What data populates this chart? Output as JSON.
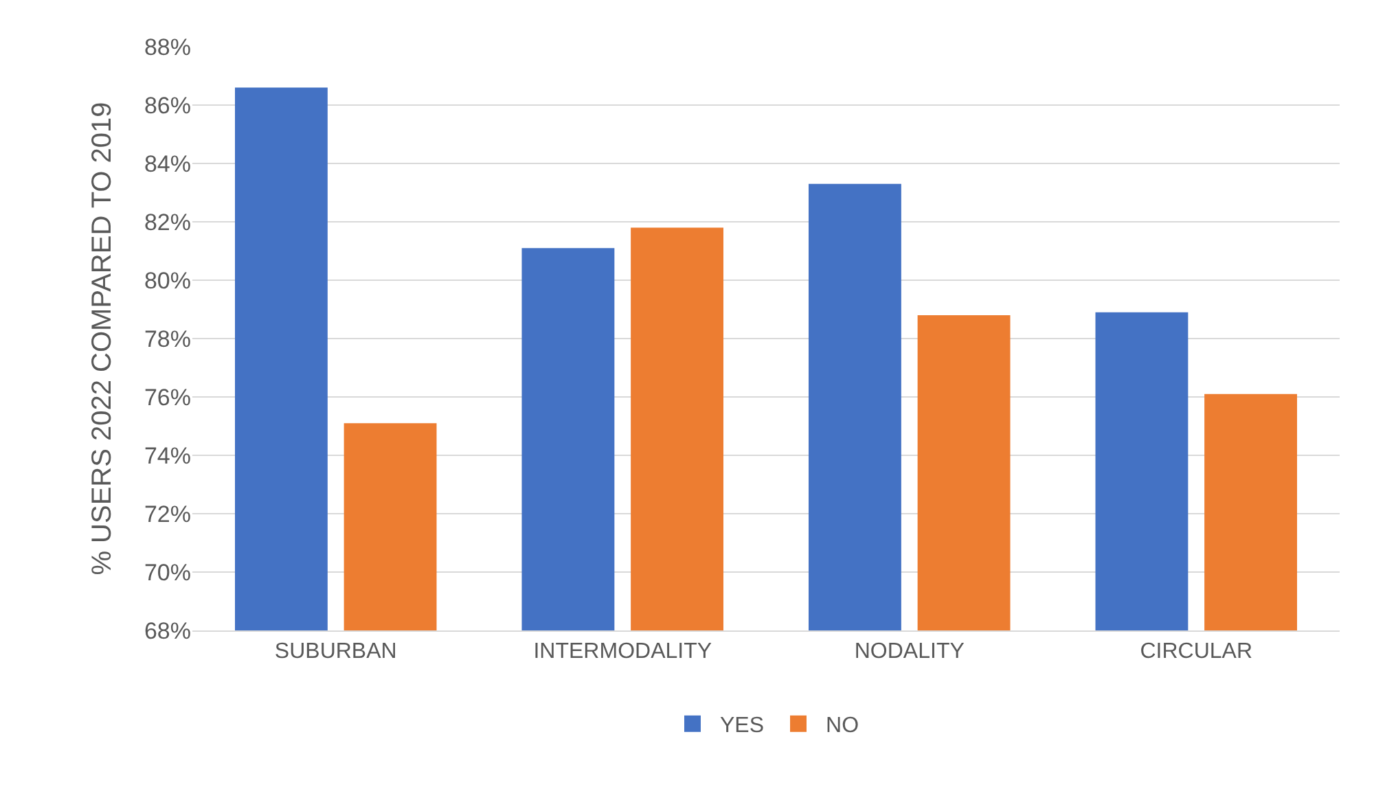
{
  "chart_data": {
    "type": "bar",
    "ylabel": "% USERS 2022 COMPARED TO 2019",
    "categories": [
      "SUBURBAN",
      "INTERMODALITY",
      "NODALITY",
      "CIRCULAR"
    ],
    "series": [
      {
        "name": "YES",
        "color": "#4472c4",
        "values": [
          86.6,
          81.1,
          83.3,
          78.9
        ]
      },
      {
        "name": "NO",
        "color": "#ed7d31",
        "values": [
          75.1,
          81.8,
          78.8,
          76.1
        ]
      }
    ],
    "ylim": [
      68,
      88
    ],
    "yticks": [
      {
        "value": 68,
        "label": "68%"
      },
      {
        "value": 70,
        "label": "70%"
      },
      {
        "value": 72,
        "label": "72%"
      },
      {
        "value": 74,
        "label": "74%"
      },
      {
        "value": 76,
        "label": "76%"
      },
      {
        "value": 78,
        "label": "78%"
      },
      {
        "value": 80,
        "label": "80%"
      },
      {
        "value": 82,
        "label": "82%"
      },
      {
        "value": 84,
        "label": "84%"
      },
      {
        "value": 86,
        "label": "86%"
      },
      {
        "value": 88,
        "label": "88%"
      }
    ],
    "grid": "y",
    "legend": "bottom"
  }
}
